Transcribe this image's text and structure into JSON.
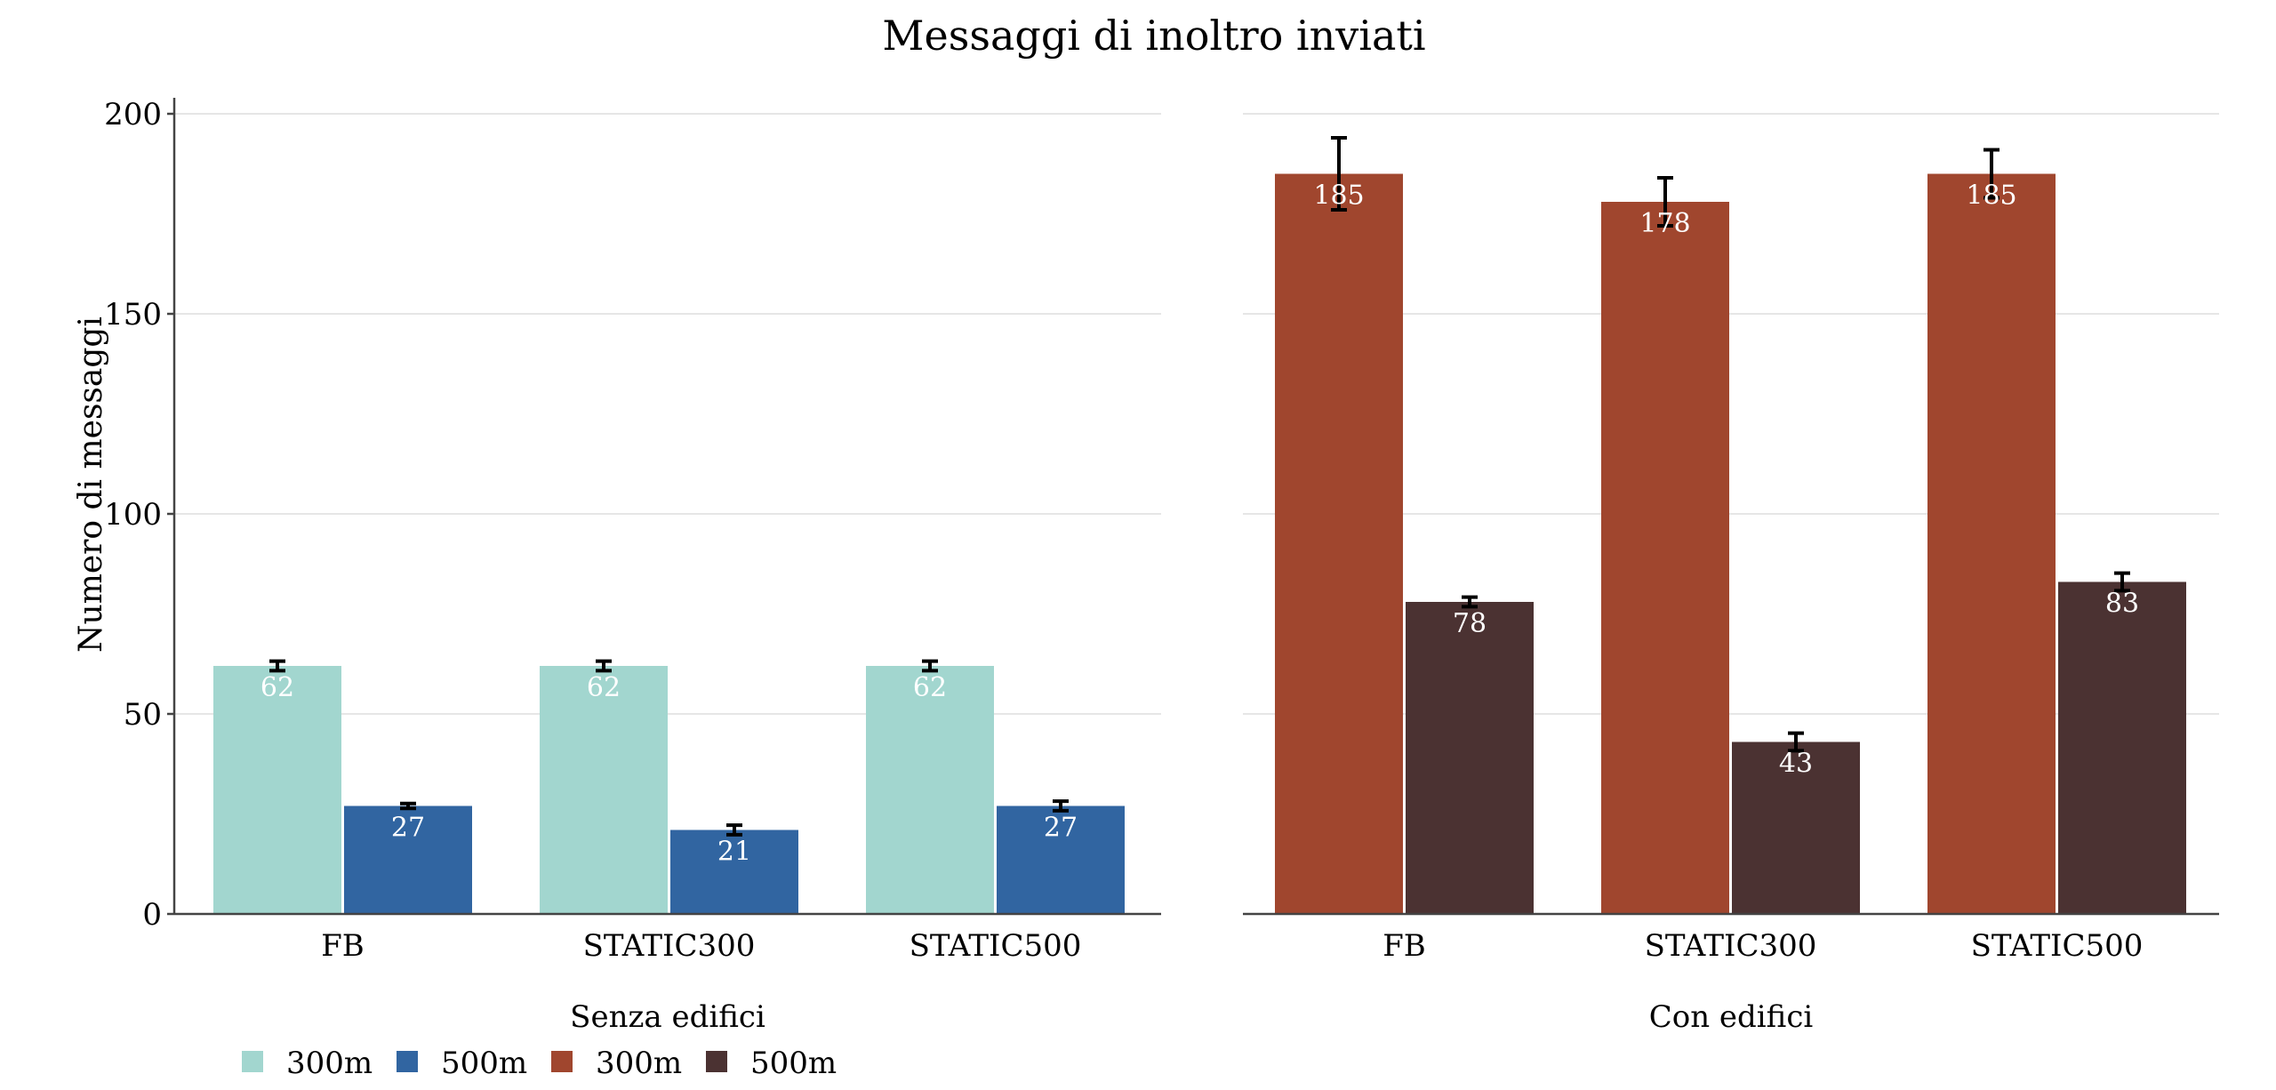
{
  "chart_data": {
    "type": "bar",
    "title": "Messaggi di inoltro inviati",
    "ylabel": "Numero di messaggi",
    "ylim": [
      0,
      200
    ],
    "yticks": [
      0,
      50,
      100,
      150,
      200
    ],
    "categories": [
      "FB",
      "STATIC300",
      "STATIC500"
    ],
    "panels": [
      {
        "label": "Senza edifici",
        "series": [
          {
            "name": "300m",
            "color": "#a2d6cf",
            "values": [
              62,
              62,
              62
            ],
            "err": [
              1.2,
              1.2,
              1.2
            ]
          },
          {
            "name": "500m",
            "color": "#3165a1",
            "values": [
              27,
              21,
              27
            ],
            "err": [
              0.6,
              1.2,
              1.2
            ]
          }
        ]
      },
      {
        "label": "Con edifici",
        "series": [
          {
            "name": "300m",
            "color": "#a0462e",
            "values": [
              185,
              178,
              185
            ],
            "err": [
              9,
              6,
              6
            ]
          },
          {
            "name": "500m",
            "color": "#4b3232",
            "values": [
              78,
              43,
              83
            ],
            "err": [
              1.2,
              2.2,
              2.2
            ]
          }
        ]
      }
    ],
    "legend": [
      {
        "name": "300m",
        "color": "#a2d6cf"
      },
      {
        "name": "500m",
        "color": "#3165a1"
      },
      {
        "name": "300m",
        "color": "#a0462e"
      },
      {
        "name": "500m",
        "color": "#4b3232"
      }
    ],
    "grid": true,
    "legend_position": "bottom-left"
  }
}
